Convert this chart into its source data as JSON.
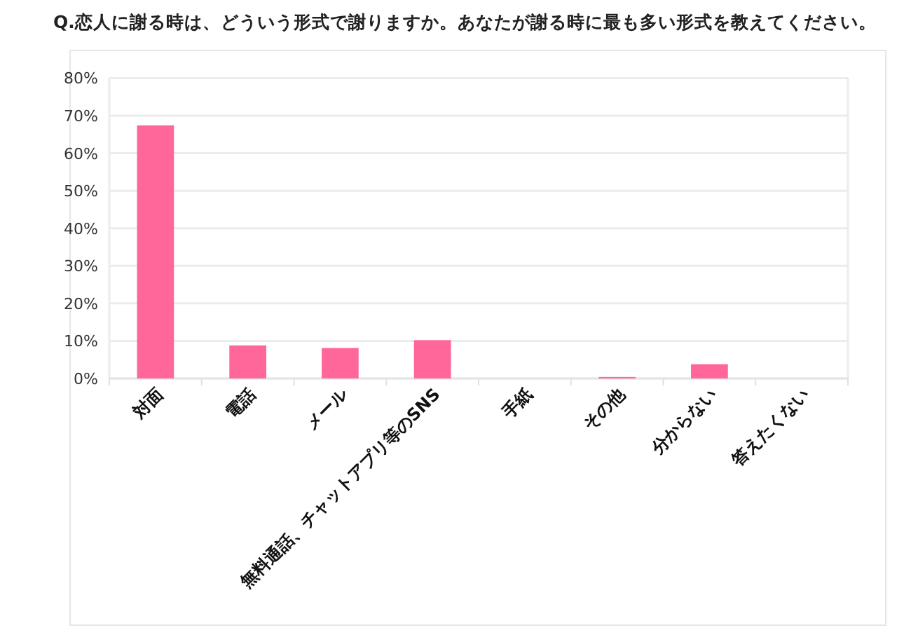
{
  "chart_data": {
    "type": "bar",
    "title": "Q.恋人に謝る時は、どういう形式で謝りますか。あなたが謝る時に最も多い形式を教えてください。",
    "categories": [
      "対面",
      "電話",
      "メール",
      "無料通話、チャットアプリ等のSNS",
      "手紙",
      "その他",
      "分からない",
      "答えたくない"
    ],
    "values": [
      67.4,
      8.8,
      8.1,
      10.2,
      0,
      0.4,
      3.8,
      0
    ],
    "color": "#ff6699",
    "ylim": [
      0,
      80
    ],
    "yticks": [
      {
        "value": 0,
        "label": "0%"
      },
      {
        "value": 10,
        "label": "10%"
      },
      {
        "value": 20,
        "label": "20%"
      },
      {
        "value": 30,
        "label": "30%"
      },
      {
        "value": 40,
        "label": "40%"
      },
      {
        "value": 50,
        "label": "50%"
      },
      {
        "value": 60,
        "label": "60%"
      },
      {
        "value": 70,
        "label": "70%"
      },
      {
        "value": 80,
        "label": "80%"
      }
    ],
    "grid": "y"
  }
}
